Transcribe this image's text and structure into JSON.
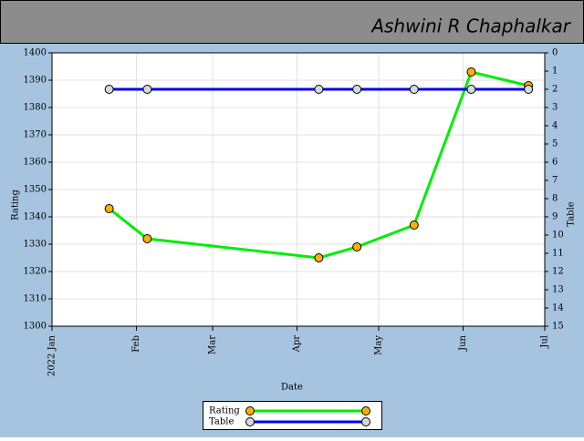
{
  "chart_data": {
    "type": "line",
    "title": "Ashwini R Chaphalkar",
    "x_label": "Date",
    "y_label": "Rating",
    "y2_label": "Table",
    "x": [
      21,
      35,
      98,
      112,
      133,
      154,
      175
    ],
    "xlim": [
      0,
      181
    ],
    "xticks": [
      {
        "value": 0,
        "label": "2022 Jan"
      },
      {
        "value": 31,
        "label": "Feb"
      },
      {
        "value": 59,
        "label": "Mar"
      },
      {
        "value": 90,
        "label": "Apr"
      },
      {
        "value": 120,
        "label": "May"
      },
      {
        "value": 151,
        "label": "Jun"
      },
      {
        "value": 181,
        "label": "Jul"
      }
    ],
    "ylim": [
      1300,
      1400
    ],
    "yticks": [
      1300,
      1310,
      1320,
      1330,
      1340,
      1350,
      1360,
      1370,
      1380,
      1390,
      1400
    ],
    "y2lim": [
      15,
      0
    ],
    "y2ticks": [
      0,
      1,
      2,
      3,
      4,
      5,
      6,
      7,
      8,
      9,
      10,
      11,
      12,
      13,
      14,
      15
    ],
    "grid": true,
    "series": [
      {
        "name": "Rating",
        "color": "#00ee00",
        "marker_color": "#ffb000",
        "values": [
          1343,
          1332,
          1325,
          1329,
          1337,
          1393,
          1388
        ]
      },
      {
        "name": "Table",
        "color": "#0000ee",
        "marker_color": "#d8d8d8",
        "axis": "y2",
        "values": [
          2,
          2,
          2,
          2,
          2,
          2,
          2
        ]
      }
    ]
  }
}
